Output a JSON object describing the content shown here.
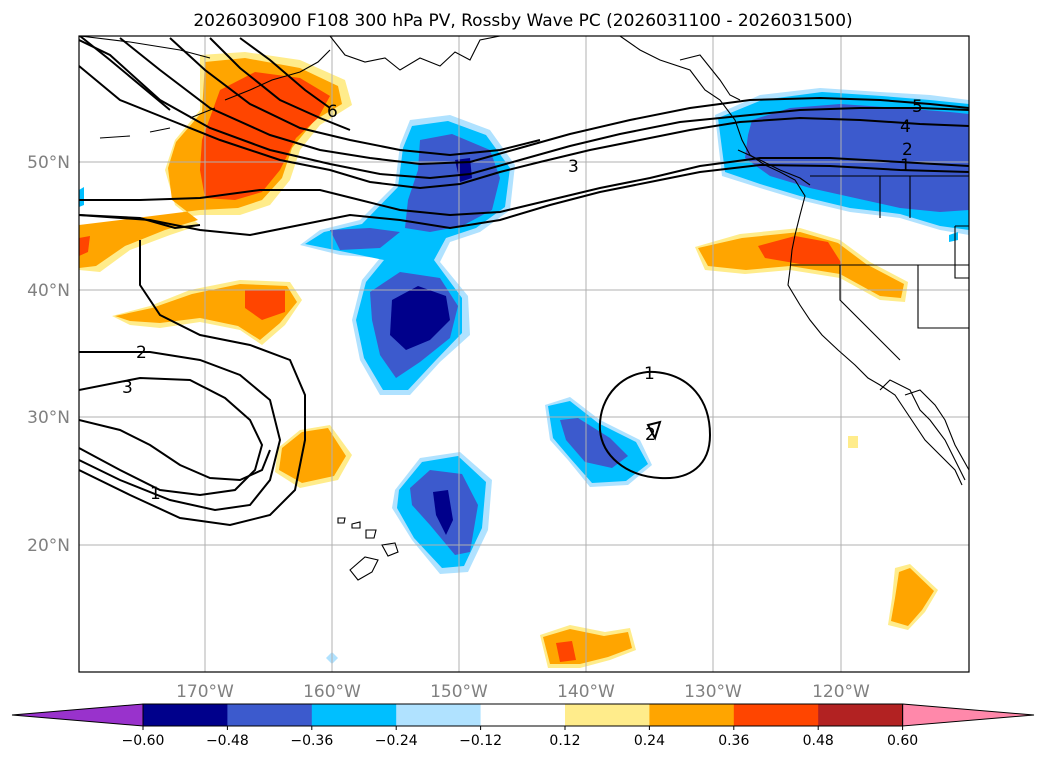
{
  "title": "2026030900 F108 300 hPa PV, Rossby Wave PC (2026031100 - 2026031500)",
  "lat_labels": [
    "50°N",
    "40°N",
    "30°N",
    "20°N"
  ],
  "lon_labels": [
    "170°W",
    "160°W",
    "150°W",
    "140°W",
    "130°W",
    "120°W"
  ],
  "colorbar": {
    "colors": [
      "#9932cc",
      "#00008b",
      "#3c5acd",
      "#00bfff",
      "#b0e2ff",
      "#ffffff",
      "#ffec8b",
      "#ffa500",
      "#ff4500",
      "#b22222",
      "#ff88aa"
    ],
    "ticks": [
      "−0.60",
      "−0.48",
      "−0.36",
      "−0.24",
      "−0.12",
      "0.12",
      "0.24",
      "0.36",
      "0.48",
      "0.60"
    ]
  },
  "contour_labels": [
    "6",
    "3",
    "5",
    "4",
    "2",
    "1",
    "2",
    "3",
    "1",
    "1",
    "2"
  ],
  "colors": {
    "negative_strong": "#00008b",
    "negative_medium": "#3c5acd",
    "negative_light": "#00bfff",
    "negative_pale": "#b0e2ff",
    "positive_pale": "#ffec8b",
    "positive_light": "#ffa500",
    "positive_medium": "#ff4500"
  }
}
